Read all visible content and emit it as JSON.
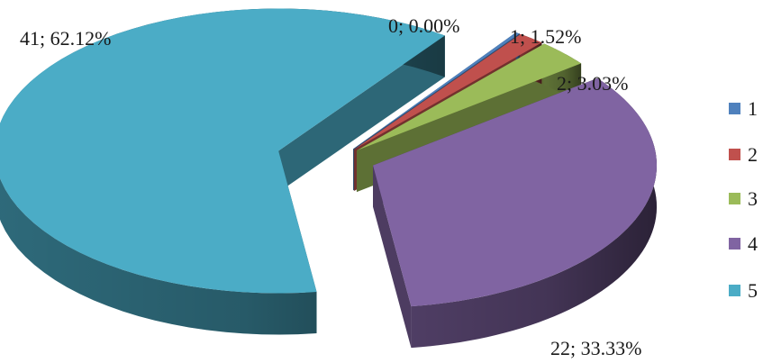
{
  "chart_data": {
    "type": "pie",
    "title": "",
    "three_d": true,
    "exploded": true,
    "legend_position": "right",
    "categories": [
      "1",
      "2",
      "3",
      "4",
      "5"
    ],
    "values": [
      0,
      1,
      2,
      22,
      41
    ],
    "percents": [
      "0.00%",
      "1.52%",
      "3.03%",
      "33.33%",
      "62.12%"
    ],
    "data_labels": [
      "0; 0.00%",
      "1; 1.52%",
      "2; 3.03%",
      "22; 33.33%",
      "41; 62.12%"
    ],
    "colors": [
      "#4f81bd",
      "#c0504d",
      "#9bbb59",
      "#8064a2",
      "#4bacc6"
    ]
  }
}
